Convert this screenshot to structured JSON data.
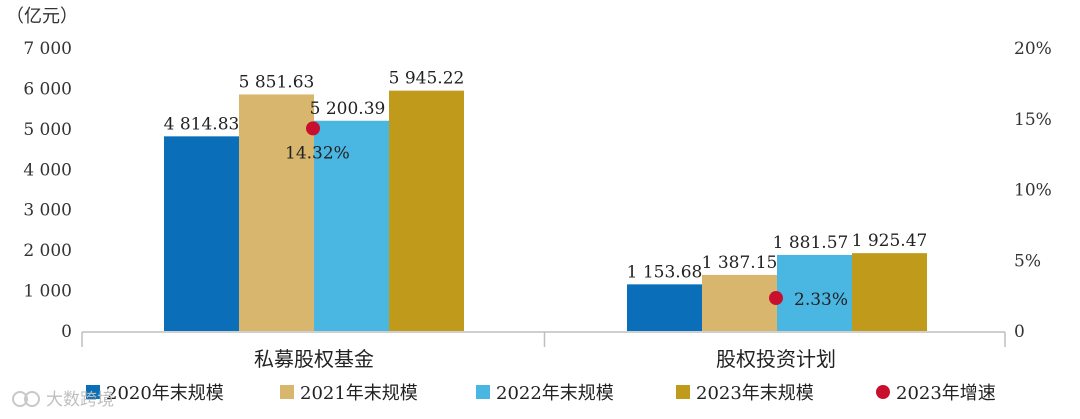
{
  "chart_data": {
    "type": "bar",
    "y_unit_label": "（亿元）",
    "categories": [
      "私募股权基金",
      "股权投资计划"
    ],
    "series": [
      {
        "name": "2020年末规模",
        "color": "#0a6fb8",
        "values": [
          4814.83,
          1153.68
        ],
        "labels": [
          "4 814.83",
          "1 153.68"
        ]
      },
      {
        "name": "2021年末规模",
        "color": "#d8b66e",
        "values": [
          5851.63,
          1387.15
        ],
        "labels": [
          "5 851.63",
          "1 387.15"
        ]
      },
      {
        "name": "2022年末规模",
        "color": "#4ab6e2",
        "values": [
          5200.39,
          1881.57
        ],
        "labels": [
          "5 200.39",
          "1 881.57"
        ]
      },
      {
        "name": "2023年末规模",
        "color": "#c09a1b",
        "values": [
          5945.22,
          1925.47
        ],
        "labels": [
          "5 945.22",
          "1 925.47"
        ]
      }
    ],
    "growth": {
      "name": "2023年增速",
      "color": "#c8102e",
      "values": [
        14.32,
        2.33
      ],
      "labels": [
        "14.32%",
        "2.33%"
      ]
    },
    "y_left": {
      "min": 0,
      "max": 7000,
      "ticks": [
        0,
        1000,
        2000,
        3000,
        4000,
        5000,
        6000,
        7000
      ],
      "tick_labels": [
        "0",
        "1 000",
        "2 000",
        "3 000",
        "4 000",
        "5 000",
        "6 000",
        "7 000"
      ]
    },
    "y_right": {
      "min": 0,
      "max": 20,
      "ticks": [
        0,
        5,
        10,
        15,
        20
      ],
      "tick_labels": [
        "0",
        "5%",
        "10%",
        "15%",
        "20%"
      ]
    },
    "grid": false,
    "legend_position": "bottom"
  },
  "watermark": "大数跨境"
}
